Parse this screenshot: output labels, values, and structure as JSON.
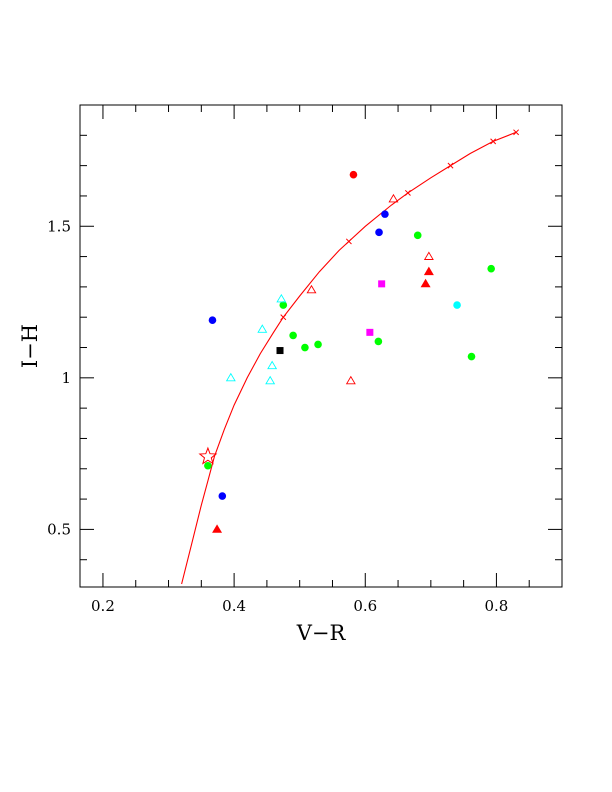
{
  "chart_data": {
    "type": "scatter",
    "xlabel": "V−R",
    "ylabel": "I−H",
    "xlim": [
      0.165,
      0.9
    ],
    "ylim": [
      0.31,
      1.9
    ],
    "xticks": [
      0.2,
      0.4,
      0.6,
      0.8
    ],
    "xtick_labels": [
      "0.2",
      "0.4",
      "0.6",
      "0.8"
    ],
    "yticks": [
      0.5,
      1.0,
      1.5
    ],
    "ytick_labels": [
      "0.5",
      "1",
      "1.5"
    ],
    "grid": false,
    "curve": {
      "color": "#ff0000",
      "points": [
        [
          0.32,
          0.32
        ],
        [
          0.335,
          0.45
        ],
        [
          0.35,
          0.58
        ],
        [
          0.36,
          0.66
        ],
        [
          0.37,
          0.74
        ],
        [
          0.385,
          0.83
        ],
        [
          0.4,
          0.91
        ],
        [
          0.42,
          1.0
        ],
        [
          0.44,
          1.08
        ],
        [
          0.46,
          1.15
        ],
        [
          0.475,
          1.2
        ],
        [
          0.5,
          1.27
        ],
        [
          0.53,
          1.35
        ],
        [
          0.56,
          1.42
        ],
        [
          0.575,
          1.45
        ],
        [
          0.6,
          1.5
        ],
        [
          0.64,
          1.57
        ],
        [
          0.665,
          1.61
        ],
        [
          0.7,
          1.66
        ],
        [
          0.73,
          1.7
        ],
        [
          0.76,
          1.74
        ],
        [
          0.795,
          1.78
        ],
        [
          0.83,
          1.81
        ]
      ],
      "markers": [
        [
          0.475,
          1.2
        ],
        [
          0.575,
          1.45
        ],
        [
          0.665,
          1.61
        ],
        [
          0.73,
          1.7
        ],
        [
          0.795,
          1.78
        ],
        [
          0.83,
          1.81
        ]
      ]
    },
    "star": {
      "x": 0.36,
      "y": 0.74,
      "color": "#ff0000"
    },
    "series": [
      {
        "marker": "filled-circle",
        "color": "#00ff00",
        "points": [
          [
            0.475,
            1.24
          ],
          [
            0.49,
            1.14
          ],
          [
            0.508,
            1.1
          ],
          [
            0.528,
            1.11
          ],
          [
            0.62,
            1.12
          ],
          [
            0.68,
            1.47
          ],
          [
            0.762,
            1.07
          ],
          [
            0.792,
            1.36
          ],
          [
            0.36,
            0.71
          ]
        ]
      },
      {
        "marker": "filled-circle",
        "color": "#0000ff",
        "points": [
          [
            0.367,
            1.19
          ],
          [
            0.621,
            1.48
          ],
          [
            0.63,
            1.54
          ],
          [
            0.382,
            0.61
          ]
        ]
      },
      {
        "marker": "filled-circle",
        "color": "#ff0000",
        "points": [
          [
            0.582,
            1.67
          ]
        ]
      },
      {
        "marker": "filled-circle",
        "color": "#00ffff",
        "points": [
          [
            0.74,
            1.24
          ]
        ]
      },
      {
        "marker": "filled-square",
        "color": "#ff00ff",
        "points": [
          [
            0.625,
            1.31
          ],
          [
            0.607,
            1.15
          ]
        ]
      },
      {
        "marker": "filled-square",
        "color": "#000000",
        "points": [
          [
            0.47,
            1.09
          ]
        ]
      },
      {
        "marker": "open-triangle",
        "color": "#ff0000",
        "points": [
          [
            0.643,
            1.59
          ],
          [
            0.697,
            1.4
          ],
          [
            0.518,
            1.29
          ],
          [
            0.578,
            0.99
          ]
        ]
      },
      {
        "marker": "filled-triangle",
        "color": "#ff0000",
        "points": [
          [
            0.697,
            1.35
          ],
          [
            0.692,
            1.31
          ],
          [
            0.374,
            0.5
          ]
        ]
      },
      {
        "marker": "open-triangle",
        "color": "#00ffff",
        "points": [
          [
            0.472,
            1.26
          ],
          [
            0.443,
            1.16
          ],
          [
            0.395,
            1.0
          ],
          [
            0.458,
            1.04
          ],
          [
            0.455,
            0.99
          ]
        ]
      }
    ]
  }
}
